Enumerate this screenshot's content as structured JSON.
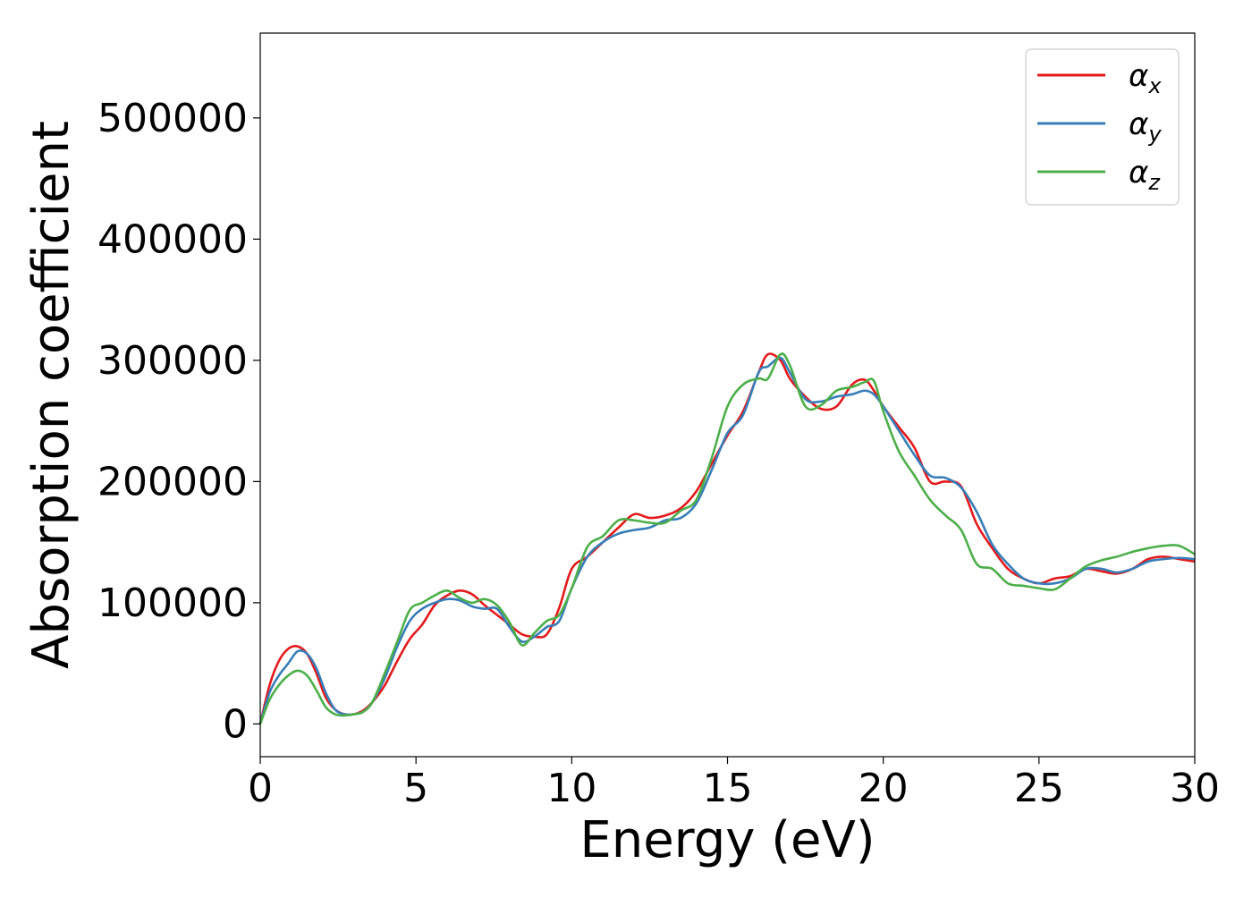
{
  "chart_data": {
    "type": "line",
    "xlabel": "Energy (eV)",
    "ylabel": "Absorption coefficient",
    "xlim": [
      0,
      30
    ],
    "ylim": [
      -27000,
      570000
    ],
    "xticks": [
      0,
      5,
      10,
      15,
      20,
      25,
      30
    ],
    "yticks": [
      0,
      100000,
      200000,
      300000,
      400000,
      500000
    ],
    "grid": false,
    "legend_position": "top-right",
    "series": [
      {
        "name": "α_x",
        "label_base": "α",
        "label_sub": "x",
        "color": "#e41a1c",
        "x": [
          0,
          0.3,
          0.6,
          0.9,
          1.2,
          1.5,
          1.8,
          2.1,
          2.4,
          2.7,
          3.0,
          3.3,
          3.6,
          4.0,
          4.4,
          4.8,
          5.2,
          5.6,
          6.0,
          6.4,
          6.8,
          7.2,
          7.6,
          8.0,
          8.4,
          8.8,
          9.2,
          9.6,
          10.0,
          10.5,
          11.0,
          11.5,
          12.0,
          12.5,
          13.0,
          13.5,
          14.0,
          14.5,
          15.0,
          15.5,
          16.0,
          16.3,
          16.7,
          17.0,
          17.5,
          18.0,
          18.5,
          19.0,
          19.4,
          19.7,
          20.0,
          20.5,
          21.0,
          21.5,
          22.0,
          22.5,
          23.0,
          23.5,
          24.0,
          24.5,
          25.0,
          25.5,
          26.0,
          26.5,
          27.0,
          27.5,
          28.0,
          28.5,
          29.0,
          29.5,
          30.0
        ],
        "values": [
          0,
          32000,
          52000,
          62000,
          64000,
          58000,
          42000,
          22000,
          12000,
          8000,
          8000,
          11000,
          18000,
          32000,
          52000,
          70000,
          82000,
          98000,
          106000,
          110000,
          107000,
          98000,
          90000,
          82000,
          74000,
          72000,
          74000,
          96000,
          128000,
          138000,
          150000,
          162000,
          173000,
          170000,
          172000,
          178000,
          192000,
          215000,
          238000,
          258000,
          290000,
          305000,
          300000,
          285000,
          270000,
          260000,
          262000,
          280000,
          284000,
          275000,
          262000,
          245000,
          228000,
          200000,
          200000,
          196000,
          165000,
          145000,
          128000,
          120000,
          116000,
          120000,
          122000,
          128000,
          126000,
          124000,
          128000,
          136000,
          138000,
          136000,
          134000
        ]
      },
      {
        "name": "α_y",
        "label_base": "α",
        "label_sub": "y",
        "color": "#377eb8",
        "x": [
          0,
          0.3,
          0.6,
          0.9,
          1.2,
          1.5,
          1.8,
          2.1,
          2.4,
          2.7,
          3.0,
          3.3,
          3.6,
          4.0,
          4.4,
          4.8,
          5.2,
          5.6,
          6.0,
          6.4,
          6.8,
          7.2,
          7.6,
          8.0,
          8.4,
          8.8,
          9.2,
          9.6,
          10.0,
          10.5,
          11.0,
          11.5,
          12.0,
          12.5,
          13.0,
          13.5,
          14.0,
          14.5,
          15.0,
          15.5,
          16.0,
          16.3,
          16.7,
          17.0,
          17.5,
          18.0,
          18.5,
          19.0,
          19.4,
          19.7,
          20.0,
          20.5,
          21.0,
          21.5,
          22.0,
          22.5,
          23.0,
          23.5,
          24.0,
          24.5,
          25.0,
          25.5,
          26.0,
          26.5,
          27.0,
          27.5,
          28.0,
          28.5,
          29.0,
          29.5,
          30.0
        ],
        "values": [
          0,
          26000,
          40000,
          50000,
          60000,
          58000,
          46000,
          26000,
          12000,
          8000,
          8000,
          10000,
          18000,
          38000,
          64000,
          85000,
          95000,
          100000,
          103000,
          102000,
          97000,
          95000,
          95000,
          80000,
          68000,
          72000,
          80000,
          85000,
          112000,
          138000,
          150000,
          157000,
          160000,
          162000,
          168000,
          170000,
          182000,
          210000,
          240000,
          255000,
          290000,
          295000,
          302000,
          290000,
          268000,
          266000,
          270000,
          272000,
          275000,
          272000,
          262000,
          242000,
          222000,
          205000,
          203000,
          195000,
          175000,
          148000,
          132000,
          120000,
          116000,
          116000,
          120000,
          128000,
          128000,
          125000,
          128000,
          134000,
          136000,
          137000,
          136000
        ]
      },
      {
        "name": "α_z",
        "label_base": "α",
        "label_sub": "z",
        "color": "#4daf4a",
        "x": [
          0,
          0.3,
          0.6,
          0.9,
          1.2,
          1.5,
          1.8,
          2.1,
          2.4,
          2.7,
          3.0,
          3.3,
          3.6,
          4.0,
          4.4,
          4.8,
          5.2,
          5.6,
          6.0,
          6.4,
          6.8,
          7.2,
          7.6,
          8.0,
          8.4,
          8.8,
          9.2,
          9.6,
          10.0,
          10.5,
          11.0,
          11.5,
          12.0,
          12.5,
          13.0,
          13.5,
          14.0,
          14.5,
          15.0,
          15.5,
          16.0,
          16.3,
          16.7,
          17.0,
          17.5,
          18.0,
          18.5,
          19.0,
          19.4,
          19.7,
          20.0,
          20.5,
          21.0,
          21.5,
          22.0,
          22.5,
          23.0,
          23.5,
          24.0,
          24.5,
          25.0,
          25.5,
          26.0,
          26.5,
          27.0,
          27.5,
          28.0,
          28.5,
          29.0,
          29.5,
          30.0
        ],
        "values": [
          0,
          20000,
          32000,
          40000,
          44000,
          40000,
          28000,
          14000,
          8000,
          7000,
          8000,
          10000,
          18000,
          42000,
          68000,
          94000,
          100000,
          106000,
          110000,
          104000,
          100000,
          103000,
          98000,
          84000,
          65000,
          75000,
          85000,
          90000,
          112000,
          146000,
          155000,
          168000,
          168000,
          166000,
          166000,
          176000,
          185000,
          220000,
          262000,
          280000,
          285000,
          285000,
          305000,
          296000,
          262000,
          263000,
          275000,
          278000,
          282000,
          283000,
          258000,
          225000,
          205000,
          185000,
          172000,
          160000,
          132000,
          128000,
          116000,
          114000,
          112000,
          111000,
          120000,
          130000,
          135000,
          138000,
          142000,
          145000,
          147000,
          147000,
          140000
        ]
      }
    ]
  }
}
